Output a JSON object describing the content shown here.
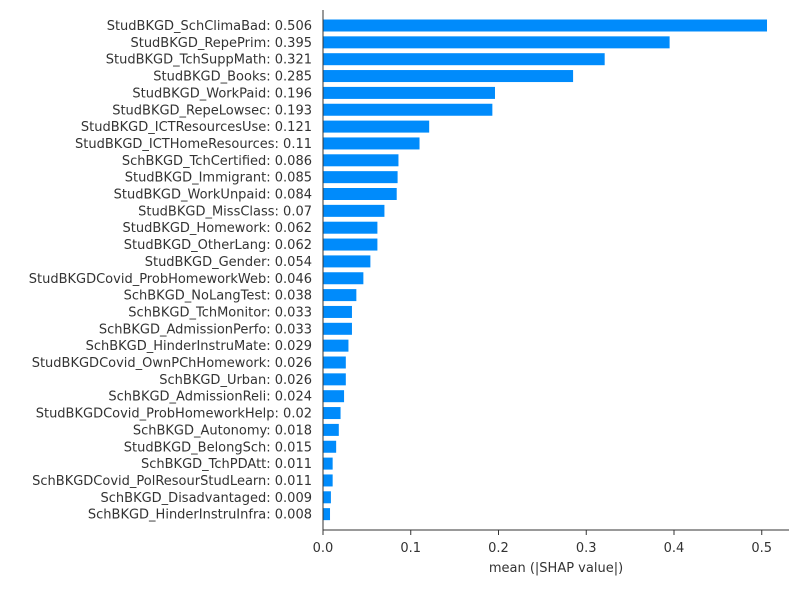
{
  "chart_data": {
    "type": "bar",
    "orientation": "horizontal",
    "bar_color": "#008bfb",
    "axis_color": "#333333",
    "xlabel": "mean (|SHAP value|)",
    "xlim": [
      0,
      0.53
    ],
    "xticks": [
      "0.0",
      "0.1",
      "0.2",
      "0.3",
      "0.4",
      "0.5"
    ],
    "grid": false,
    "categories": [
      "StudBKGD_SchClimaBad: 0.506",
      "StudBKGD_RepePrim: 0.395",
      "StudBKGD_TchSuppMath: 0.321",
      "StudBKGD_Books: 0.285",
      "StudBKGD_WorkPaid: 0.196",
      "StudBKGD_RepeLowsec: 0.193",
      "StudBKGD_ICTResourcesUse: 0.121",
      "StudBKGD_ICTHomeResources: 0.11",
      "SchBKGD_TchCertified: 0.086",
      "StudBKGD_Immigrant: 0.085",
      "StudBKGD_WorkUnpaid: 0.084",
      "StudBKGD_MissClass: 0.07",
      "StudBKGD_Homework: 0.062",
      "StudBKGD_OtherLang: 0.062",
      "StudBKGD_Gender: 0.054",
      "StudBKGDCovid_ProbHomeworkWeb: 0.046",
      "SchBKGD_NoLangTest: 0.038",
      "SchBKGD_TchMonitor: 0.033",
      "SchBKGD_AdmissionPerfo: 0.033",
      "SchBKGD_HinderInstruMate: 0.029",
      "StudBKGDCovid_OwnPChHomework: 0.026",
      "SchBKGD_Urban: 0.026",
      "SchBKGD_AdmissionReli: 0.024",
      "StudBKGDCovid_ProbHomeworkHelp: 0.02",
      "SchBKGD_Autonomy: 0.018",
      "StudBKGD_BelongSch: 0.015",
      "SchBKGD_TchPDAtt: 0.011",
      "SchBKGDCovid_PolResourStudLearn: 0.011",
      "SchBKGD_Disadvantaged: 0.009",
      "SchBKGD_HinderInstruInfra: 0.008"
    ],
    "values": [
      0.506,
      0.395,
      0.321,
      0.285,
      0.196,
      0.193,
      0.121,
      0.11,
      0.086,
      0.085,
      0.084,
      0.07,
      0.062,
      0.062,
      0.054,
      0.046,
      0.038,
      0.033,
      0.033,
      0.029,
      0.026,
      0.026,
      0.024,
      0.02,
      0.018,
      0.015,
      0.011,
      0.011,
      0.009,
      0.008
    ]
  }
}
